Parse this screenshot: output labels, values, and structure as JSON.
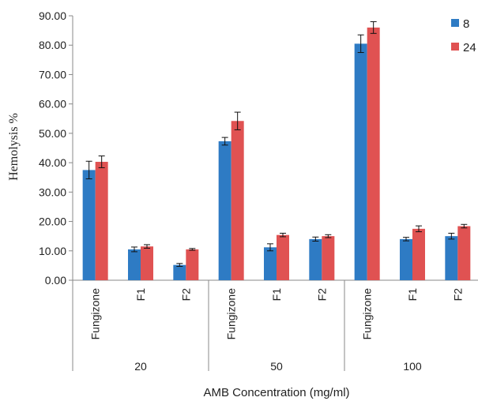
{
  "chart_data": {
    "type": "bar",
    "title": "",
    "xlabel": "AMB Concentration (mg/ml)",
    "ylabel": "Hemolysis %",
    "ylim": [
      0,
      90
    ],
    "ytick_step": 10,
    "yticks": [
      "0.00",
      "10.00",
      "20.00",
      "30.00",
      "40.00",
      "50.00",
      "60.00",
      "70.00",
      "80.00",
      "90.00"
    ],
    "legend_position": "top-right",
    "groups": [
      {
        "label": "20",
        "categories": [
          "Fungizone",
          "F1",
          "F2"
        ]
      },
      {
        "label": "50",
        "categories": [
          "Fungizone",
          "F1",
          "F2"
        ]
      },
      {
        "label": "100",
        "categories": [
          "Fungizone",
          "F1",
          "F2"
        ]
      }
    ],
    "series": [
      {
        "name": "8",
        "color": "#2e7bc4",
        "values": [
          37.5,
          10.5,
          5.2,
          47.3,
          11.2,
          14.0,
          80.5,
          14.0,
          15.0
        ],
        "errors": [
          3.0,
          0.8,
          0.5,
          1.3,
          1.2,
          0.7,
          3.0,
          0.6,
          1.0
        ]
      },
      {
        "name": "24",
        "color": "#e05252",
        "values": [
          40.3,
          11.5,
          10.5,
          54.2,
          15.4,
          15.0,
          86.0,
          17.5,
          18.4
        ],
        "errors": [
          2.0,
          0.6,
          0.3,
          3.0,
          0.6,
          0.5,
          2.0,
          1.0,
          0.6
        ]
      }
    ]
  }
}
